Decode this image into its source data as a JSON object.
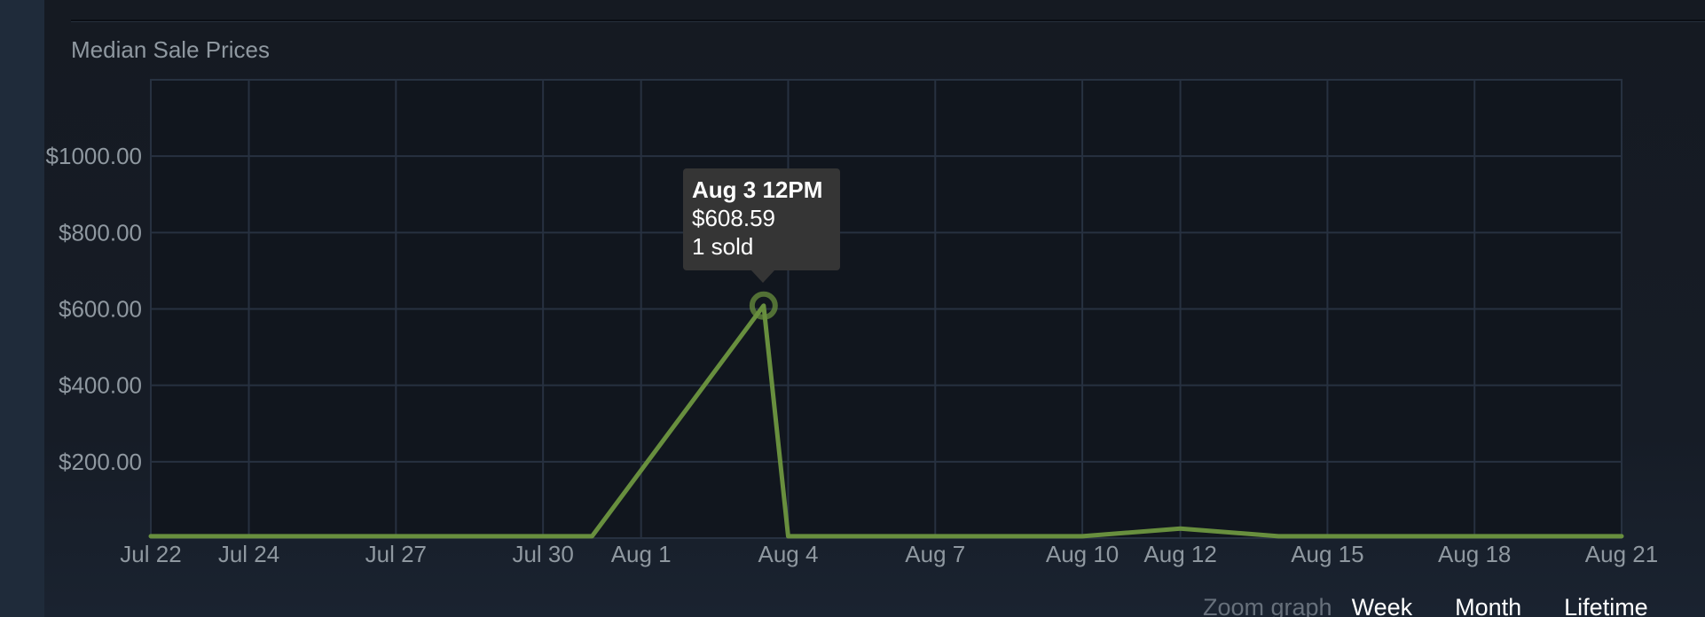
{
  "title": "Median Sale Prices",
  "chart_data": {
    "type": "line",
    "title": "Median Sale Prices",
    "xlabel": "",
    "ylabel": "",
    "x_tick_labels": [
      "Jul 22",
      "Jul 24",
      "Jul 27",
      "Jul 30",
      "Aug 1",
      "Aug 4",
      "Aug 7",
      "Aug 10",
      "Aug 12",
      "Aug 15",
      "Aug 18",
      "Aug 21"
    ],
    "y_tick_labels": [
      "$1000.00",
      "$800.00",
      "$600.00",
      "$400.00",
      "$200.00"
    ],
    "y_ticks": [
      1000,
      800,
      600,
      400,
      200
    ],
    "ylim": [
      0,
      1200
    ],
    "grid": true,
    "series": [
      {
        "color": "#688f3e",
        "points": [
          {
            "x": "Jul 22",
            "y": 5
          },
          {
            "x": "Jul 25",
            "y": 5
          },
          {
            "x": "Jul 31",
            "y": 5
          },
          {
            "x": "Aug 3 12PM",
            "y": 608.59
          },
          {
            "x": "Aug 4",
            "y": 5
          },
          {
            "x": "Aug 7",
            "y": 5
          },
          {
            "x": "Aug 10",
            "y": 5
          },
          {
            "x": "Aug 12",
            "y": 25
          },
          {
            "x": "Aug 14",
            "y": 5
          },
          {
            "x": "Aug 18",
            "y": 5
          },
          {
            "x": "Aug 21",
            "y": 5
          }
        ]
      }
    ],
    "highlight": {
      "x": "Aug 3 12PM",
      "y": 608.59
    }
  },
  "tooltip": {
    "date": "Aug 3 12PM",
    "price": "$608.59",
    "sold": "1 sold"
  },
  "zoom": {
    "label": "Zoom graph",
    "options": [
      "Week",
      "Month",
      "Lifetime"
    ]
  },
  "colors": {
    "line": "#688f3e",
    "grid": "#273140",
    "plot_background": "#11161e",
    "axis_text": "#8f98a0"
  }
}
